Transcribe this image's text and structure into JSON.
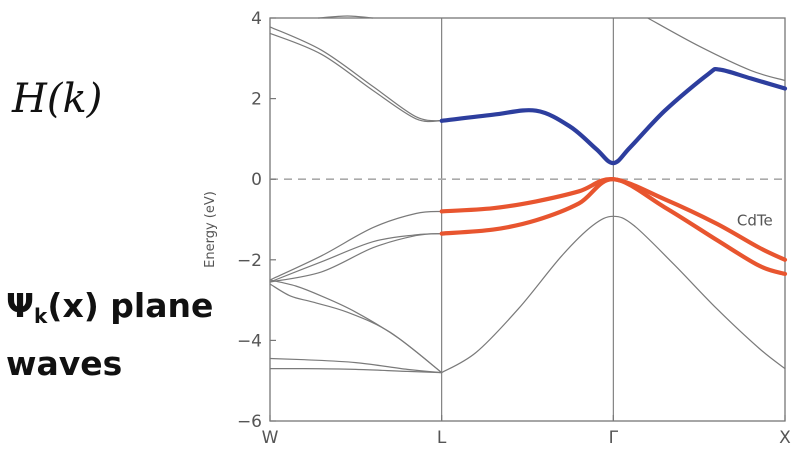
{
  "left_text": {
    "hamiltonian": "H(k)",
    "wavefunction_psi": "Ψ",
    "wavefunction_sub": "k",
    "wavefunction_arg": "(x) plane",
    "wavefunction_line2": "waves"
  },
  "chart_data": {
    "type": "line",
    "ylabel": "Energy (eV)",
    "ylim": [
      -6,
      4
    ],
    "yticks": [
      4,
      2,
      0,
      -2,
      -4,
      -6
    ],
    "ytick_labels": [
      "4",
      "2",
      "0",
      "−2",
      "−4",
      "−6"
    ],
    "xlim": [
      0,
      3
    ],
    "xticks": [
      0,
      1,
      2,
      3
    ],
    "xtick_labels": [
      "W",
      "L",
      "Γ",
      "X"
    ],
    "zero_line": {
      "y": 0,
      "style": "dashed",
      "color": "#aaaaaa"
    },
    "annotation": {
      "text": "CdTe",
      "x": 2.72,
      "y": -1.0
    },
    "colors": {
      "conduction": "#2d3e9e",
      "valence": "#e8552f",
      "other": "#7a7a7a",
      "axis": "#777777"
    },
    "series": [
      {
        "group": "other",
        "points": [
          [
            0,
            3.78
          ],
          [
            0.3,
            3.2
          ],
          [
            0.6,
            2.3
          ],
          [
            0.85,
            1.55
          ],
          [
            1,
            1.45
          ]
        ]
      },
      {
        "group": "other",
        "points": [
          [
            0,
            3.62
          ],
          [
            0.3,
            3.1
          ],
          [
            0.6,
            2.2
          ],
          [
            0.85,
            1.5
          ],
          [
            1,
            1.45
          ]
        ]
      },
      {
        "group": "conduction",
        "points": [
          [
            1,
            1.45
          ],
          [
            1.3,
            1.6
          ],
          [
            1.55,
            1.7
          ],
          [
            1.75,
            1.3
          ],
          [
            1.9,
            0.75
          ],
          [
            2,
            0.4
          ],
          [
            2.1,
            0.8
          ],
          [
            2.3,
            1.7
          ],
          [
            2.55,
            2.6
          ],
          [
            2.62,
            2.72
          ],
          [
            2.8,
            2.5
          ],
          [
            3,
            2.25
          ]
        ]
      },
      {
        "group": "other",
        "points": [
          [
            0.28,
            4.0
          ],
          [
            0.45,
            4.05
          ],
          [
            0.6,
            4.0
          ]
        ]
      },
      {
        "group": "other",
        "points": [
          [
            2.2,
            4.0
          ],
          [
            2.5,
            3.3
          ],
          [
            2.8,
            2.7
          ],
          [
            3,
            2.45
          ]
        ]
      },
      {
        "group": "valence",
        "points": [
          [
            1,
            -0.8
          ],
          [
            1.3,
            -0.72
          ],
          [
            1.55,
            -0.55
          ],
          [
            1.8,
            -0.3
          ],
          [
            2,
            0.0
          ],
          [
            2.3,
            -0.5
          ],
          [
            2.6,
            -1.1
          ],
          [
            2.85,
            -1.7
          ],
          [
            3,
            -2.0
          ]
        ]
      },
      {
        "group": "valence",
        "points": [
          [
            1,
            -1.35
          ],
          [
            1.3,
            -1.25
          ],
          [
            1.55,
            -1.02
          ],
          [
            1.8,
            -0.6
          ],
          [
            2,
            0.0
          ],
          [
            2.3,
            -0.7
          ],
          [
            2.6,
            -1.5
          ],
          [
            2.85,
            -2.15
          ],
          [
            3,
            -2.35
          ]
        ]
      },
      {
        "group": "other",
        "points": [
          [
            0,
            -2.5
          ],
          [
            0.3,
            -1.9
          ],
          [
            0.6,
            -1.2
          ],
          [
            0.85,
            -0.85
          ],
          [
            1,
            -0.8
          ]
        ]
      },
      {
        "group": "other",
        "points": [
          [
            0,
            -2.55
          ],
          [
            0.3,
            -2.05
          ],
          [
            0.6,
            -1.55
          ],
          [
            0.85,
            -1.38
          ],
          [
            1,
            -1.35
          ]
        ]
      },
      {
        "group": "other",
        "points": [
          [
            0,
            -2.55
          ],
          [
            0.3,
            -2.3
          ],
          [
            0.6,
            -1.7
          ],
          [
            0.85,
            -1.4
          ],
          [
            1,
            -1.35
          ]
        ]
      },
      {
        "group": "other",
        "points": [
          [
            0,
            -2.5
          ],
          [
            0.15,
            -2.65
          ],
          [
            0.3,
            -2.9
          ],
          [
            0.5,
            -3.3
          ],
          [
            0.75,
            -3.95
          ],
          [
            1,
            -4.8
          ]
        ]
      },
      {
        "group": "other",
        "points": [
          [
            0,
            -2.6
          ],
          [
            0.12,
            -2.9
          ],
          [
            0.25,
            -3.05
          ],
          [
            0.45,
            -3.3
          ],
          [
            0.7,
            -3.8
          ],
          [
            1,
            -4.8
          ]
        ]
      },
      {
        "group": "other",
        "points": [
          [
            0,
            -4.45
          ],
          [
            0.2,
            -4.48
          ],
          [
            0.5,
            -4.55
          ],
          [
            0.8,
            -4.72
          ],
          [
            1,
            -4.8
          ]
        ]
      },
      {
        "group": "other",
        "points": [
          [
            0,
            -4.7
          ],
          [
            0.2,
            -4.7
          ],
          [
            0.5,
            -4.72
          ],
          [
            0.8,
            -4.77
          ],
          [
            1,
            -4.8
          ]
        ]
      },
      {
        "group": "other",
        "points": [
          [
            1,
            -4.8
          ],
          [
            1.2,
            -4.3
          ],
          [
            1.45,
            -3.2
          ],
          [
            1.7,
            -1.9
          ],
          [
            1.88,
            -1.15
          ],
          [
            2,
            -0.92
          ],
          [
            2.12,
            -1.15
          ],
          [
            2.35,
            -2.1
          ],
          [
            2.6,
            -3.2
          ],
          [
            2.85,
            -4.2
          ],
          [
            3,
            -4.7
          ]
        ]
      }
    ]
  }
}
